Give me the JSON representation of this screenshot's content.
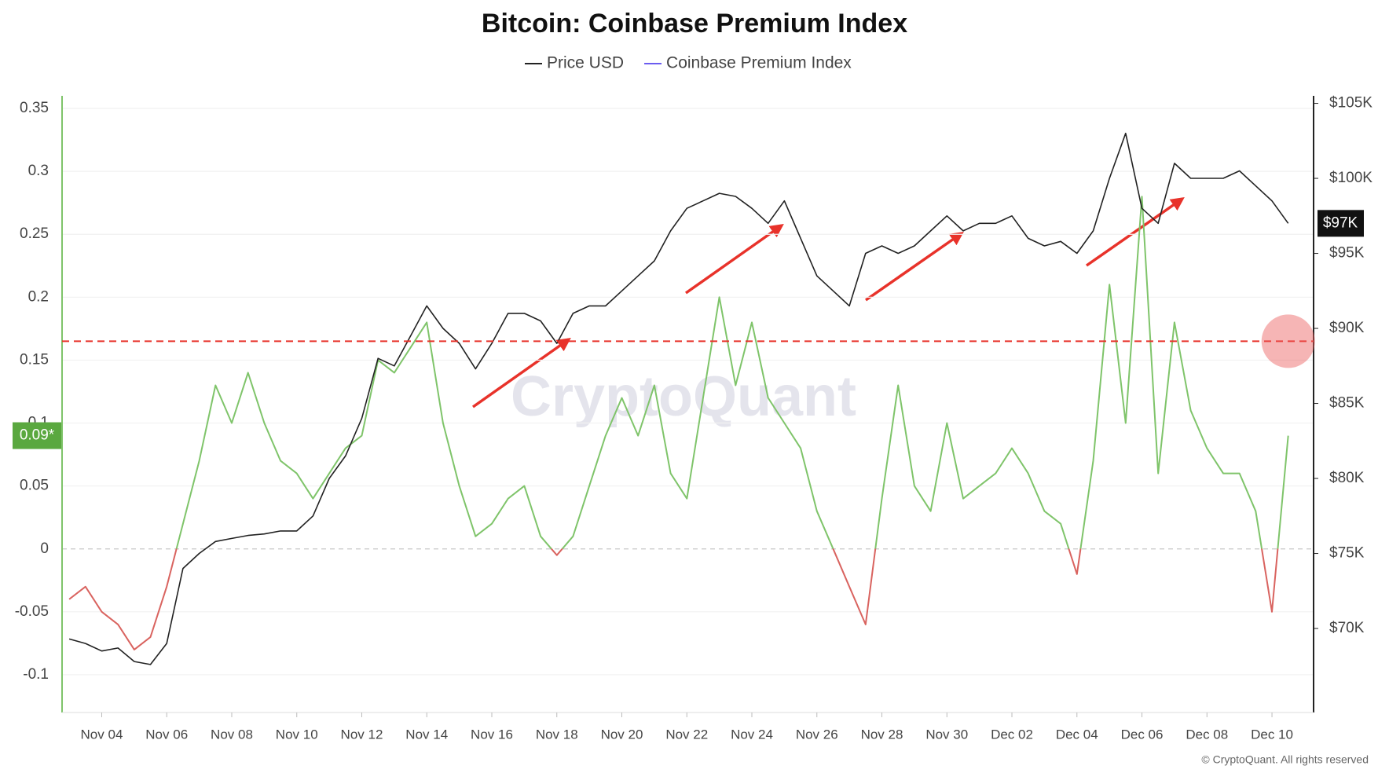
{
  "chart_data": {
    "type": "line",
    "title": "Bitcoin: Coinbase Premium Index",
    "watermark": "CryptoQuant",
    "footer": "© CryptoQuant. All rights reserved",
    "categories": [
      null,
      null,
      "Nov 04",
      null,
      null,
      null,
      "Nov 06",
      null,
      null,
      null,
      "Nov 08",
      null,
      null,
      null,
      "Nov 10",
      null,
      null,
      null,
      "Nov 12",
      null,
      null,
      null,
      "Nov 14",
      null,
      null,
      null,
      "Nov 16",
      null,
      null,
      null,
      "Nov 18",
      null,
      null,
      null,
      "Nov 20",
      null,
      null,
      null,
      "Nov 22",
      null,
      null,
      null,
      "Nov 24",
      null,
      null,
      null,
      "Nov 26",
      null,
      null,
      null,
      "Nov 28",
      null,
      null,
      null,
      "Nov 30",
      null,
      null,
      null,
      "Dec 02",
      null,
      null,
      null,
      "Dec 04",
      null,
      null,
      null,
      "Dec 06",
      null,
      null,
      null,
      "Dec 08",
      null,
      null,
      null,
      "Dec 10",
      null
    ],
    "series": [
      {
        "name": "Price USD",
        "color": "#222222",
        "axis": "y2",
        "last_label": "$97K",
        "values": [
          69300,
          69000,
          68500,
          68700,
          67800,
          67600,
          69000,
          74000,
          75000,
          75800,
          76000,
          76200,
          76300,
          76500,
          76500,
          77500,
          80000,
          81500,
          84000,
          88000,
          87500,
          89500,
          91500,
          90000,
          89000,
          87300,
          89000,
          91000,
          91000,
          90500,
          89000,
          91000,
          91500,
          91500,
          92500,
          93500,
          94500,
          96500,
          98000,
          98500,
          99000,
          98800,
          98000,
          97000,
          98500,
          96000,
          93500,
          92500,
          91500,
          95000,
          95500,
          95000,
          95500,
          96500,
          97500,
          96500,
          97000,
          97000,
          97500,
          96000,
          95500,
          95800,
          95000,
          96500,
          100000,
          103000,
          98000,
          97000,
          101000,
          100000,
          100000,
          100000,
          100500,
          99500,
          98500,
          97000
        ]
      },
      {
        "name": "Coinbase Premium Index",
        "color": "#6b5cf0",
        "positive_color": "#7fc46a",
        "negative_color": "#d9635f",
        "last_label": "0.09*",
        "values": [
          -0.04,
          -0.03,
          -0.05,
          -0.06,
          -0.08,
          -0.07,
          -0.03,
          0.02,
          0.07,
          0.13,
          0.1,
          0.14,
          0.1,
          0.07,
          0.06,
          0.04,
          0.06,
          0.08,
          0.09,
          0.15,
          0.14,
          0.16,
          0.18,
          0.1,
          0.05,
          0.01,
          0.02,
          0.04,
          0.05,
          0.01,
          -0.005,
          0.01,
          0.05,
          0.09,
          0.12,
          0.09,
          0.13,
          0.06,
          0.04,
          0.12,
          0.2,
          0.13,
          0.18,
          0.12,
          0.1,
          0.08,
          0.03,
          0.0,
          -0.03,
          -0.06,
          0.04,
          0.13,
          0.05,
          0.03,
          0.1,
          0.04,
          0.05,
          0.06,
          0.08,
          0.06,
          0.03,
          0.02,
          -0.02,
          0.07,
          0.21,
          0.1,
          0.28,
          0.06,
          0.18,
          0.11,
          0.08,
          0.06,
          0.06,
          0.03,
          -0.05,
          0.09
        ]
      }
    ],
    "threshold": 0.165,
    "ylim": [
      -0.13,
      0.36
    ],
    "yticks": [
      -0.1,
      -0.05,
      0,
      0.05,
      0.1,
      0.15,
      0.2,
      0.25,
      0.3,
      0.35
    ],
    "y2lim": [
      64400,
      105500
    ],
    "y2ticks": [
      {
        "value": 70000,
        "label": "$70K"
      },
      {
        "value": 75000,
        "label": "$75K"
      },
      {
        "value": 80000,
        "label": "$80K"
      },
      {
        "value": 85000,
        "label": "$85K"
      },
      {
        "value": 90000,
        "label": "$90K"
      },
      {
        "value": 95000,
        "label": "$95K"
      },
      {
        "value": 100000,
        "label": "$100K"
      },
      {
        "value": 105000,
        "label": "$105K"
      }
    ],
    "grid": true,
    "legend": "top"
  }
}
